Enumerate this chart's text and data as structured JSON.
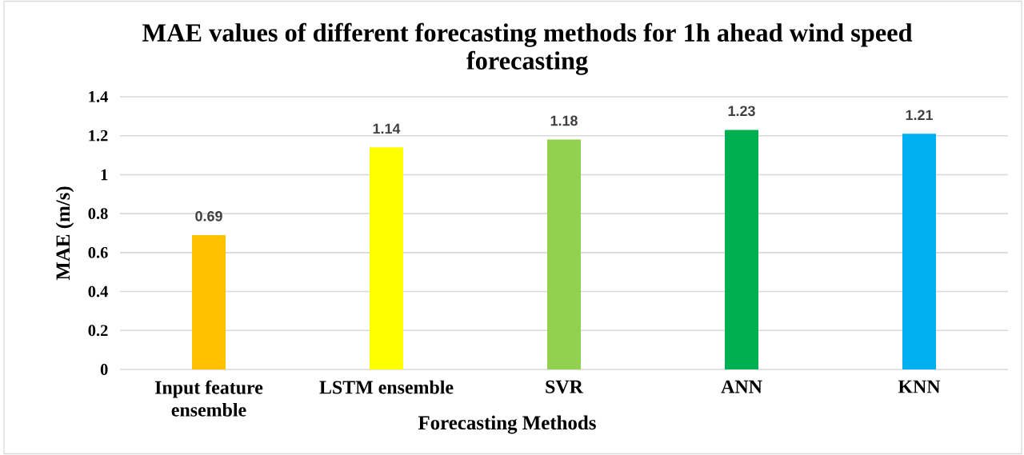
{
  "chart_data": {
    "type": "bar",
    "title": "MAE values of different forecasting methods for 1h ahead wind speed forecasting",
    "xlabel": "Forecasting Methods",
    "ylabel": "MAE (m/s)",
    "categories": [
      "Input feature ensemble",
      "LSTM ensemble",
      "SVR",
      "ANN",
      "KNN"
    ],
    "values": [
      0.69,
      1.14,
      1.18,
      1.23,
      1.21
    ],
    "colors": [
      "#ffc000",
      "#ffff00",
      "#92d050",
      "#00b050",
      "#00b0f0"
    ],
    "ylim": [
      0,
      1.4
    ],
    "yticks": [
      0,
      0.2,
      0.4,
      0.6,
      0.8,
      1,
      1.2,
      1.4
    ],
    "grid": "y",
    "data_labels": true
  }
}
